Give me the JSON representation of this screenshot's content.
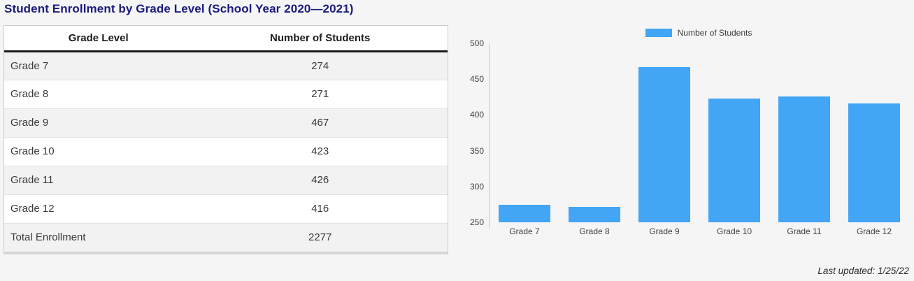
{
  "title": "Student Enrollment by Grade Level (School Year 2020—2021)",
  "table": {
    "columns": [
      "Grade Level",
      "Number of Students"
    ],
    "rows": [
      {
        "label": "Grade 7",
        "value": "274"
      },
      {
        "label": "Grade 8",
        "value": "271"
      },
      {
        "label": "Grade 9",
        "value": "467"
      },
      {
        "label": "Grade 10",
        "value": "423"
      },
      {
        "label": "Grade 11",
        "value": "426"
      },
      {
        "label": "Grade 12",
        "value": "416"
      },
      {
        "label": "Total Enrollment",
        "value": "2277"
      }
    ]
  },
  "chart_data": {
    "type": "bar",
    "title": "",
    "categories": [
      "Grade 7",
      "Grade 8",
      "Grade 9",
      "Grade 10",
      "Grade 11",
      "Grade 12"
    ],
    "values": [
      274,
      271,
      467,
      423,
      426,
      416
    ],
    "legend": "Number of Students",
    "legend_position": "top-center",
    "xlabel": "",
    "ylabel": "",
    "ylim": [
      250,
      500
    ],
    "yticks": [
      250,
      300,
      350,
      400,
      450,
      500
    ],
    "grid": false,
    "bar_color": "#42a5f5"
  },
  "footer": {
    "last_updated": "Last updated: 1/25/22"
  },
  "colors": {
    "title": "#1a1a7e",
    "bar": "#42a5f5",
    "background": "#f5f5f6"
  }
}
